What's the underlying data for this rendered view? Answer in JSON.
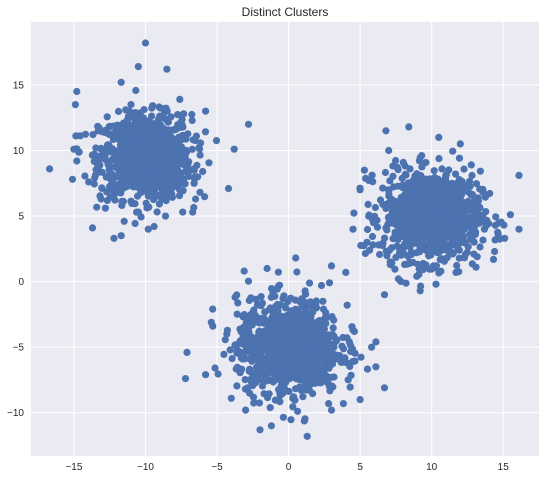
{
  "chart_data": {
    "type": "scatter",
    "title": "Distinct Clusters",
    "xlabel": "",
    "ylabel": "",
    "xlim": [
      -18.0,
      17.5
    ],
    "ylim": [
      -13.3,
      19.8
    ],
    "xticks": [
      -15,
      -10,
      -5,
      0,
      5,
      10,
      15
    ],
    "yticks": [
      -10,
      -5,
      0,
      5,
      10,
      15
    ],
    "grid": true,
    "point_color": "#4c72b0",
    "background_color": "#eaeaf2",
    "grid_color": "#ffffff",
    "series": [
      {
        "center": [
          -10.0,
          9.5
        ],
        "count": 1000,
        "approx_spread": 1.6
      },
      {
        "center": [
          10.0,
          5.0
        ],
        "count": 1000,
        "approx_spread": 1.7
      },
      {
        "center": [
          0.0,
          -5.0
        ],
        "count": 1000,
        "approx_spread": 1.8
      }
    ],
    "points": [
      [
        -10.0,
        18.2
      ],
      [
        -16.7,
        8.6
      ],
      [
        -15.0,
        10.1
      ],
      [
        -15.1,
        7.8
      ],
      [
        -14.8,
        9.2
      ],
      [
        -13.7,
        4.1
      ],
      [
        -12.2,
        3.3
      ],
      [
        -11.7,
        3.5
      ],
      [
        -9.8,
        4.0
      ],
      [
        -9.4,
        4.2
      ],
      [
        -8.6,
        5.0
      ],
      [
        -7.4,
        5.3
      ],
      [
        -6.7,
        5.3
      ],
      [
        -6.6,
        7.5
      ],
      [
        -6.0,
        8.4
      ],
      [
        -4.2,
        7.1
      ],
      [
        -2.8,
        12.0
      ],
      [
        -3.8,
        10.1
      ],
      [
        -10.5,
        16.4
      ],
      [
        -8.5,
        16.2
      ],
      [
        -11.7,
        15.2
      ],
      [
        -14.8,
        14.5
      ],
      [
        -14.9,
        13.5
      ],
      [
        -7.6,
        13.9
      ],
      [
        -5.8,
        13.0
      ],
      [
        -6.5,
        6.3
      ],
      [
        -12.8,
        5.6
      ],
      [
        -13.1,
        6.3
      ],
      [
        6.8,
        11.5
      ],
      [
        8.4,
        11.8
      ],
      [
        7.0,
        10.0
      ],
      [
        10.5,
        11.0
      ],
      [
        12.0,
        10.5
      ],
      [
        5.3,
        8.5
      ],
      [
        5.0,
        7.0
      ],
      [
        16.1,
        8.1
      ],
      [
        15.5,
        5.1
      ],
      [
        16.1,
        4.0
      ],
      [
        15.1,
        3.3
      ],
      [
        14.4,
        2.3
      ],
      [
        13.1,
        1.1
      ],
      [
        11.7,
        0.7
      ],
      [
        10.3,
        -0.2
      ],
      [
        9.2,
        -0.7
      ],
      [
        6.7,
        -1.0
      ],
      [
        6.3,
        2.8
      ],
      [
        5.6,
        5.0
      ],
      [
        4.5,
        4.0
      ],
      [
        5.9,
        2.8
      ],
      [
        7.1,
        1.5
      ],
      [
        0.5,
        1.8
      ],
      [
        -3.1,
        0.8
      ],
      [
        -1.5,
        1.0
      ],
      [
        3.0,
        1.2
      ],
      [
        4.0,
        0.7
      ],
      [
        -5.3,
        -2.1
      ],
      [
        -5.4,
        -3.1
      ],
      [
        -7.1,
        -5.4
      ],
      [
        -7.2,
        -7.4
      ],
      [
        -5.8,
        -7.1
      ],
      [
        -4.0,
        -8.9
      ],
      [
        -3.0,
        -9.8
      ],
      [
        -2.0,
        -11.3
      ],
      [
        -1.2,
        -11.0
      ],
      [
        1.3,
        -11.8
      ],
      [
        2.8,
        -9.3
      ],
      [
        3.0,
        -9.8
      ],
      [
        5.0,
        -9.0
      ],
      [
        6.7,
        -8.1
      ],
      [
        6.1,
        -6.5
      ],
      [
        5.8,
        -5.0
      ],
      [
        4.6,
        -3.8
      ],
      [
        6.1,
        -4.6
      ],
      [
        4.1,
        -1.8
      ],
      [
        2.3,
        -0.3
      ]
    ]
  }
}
